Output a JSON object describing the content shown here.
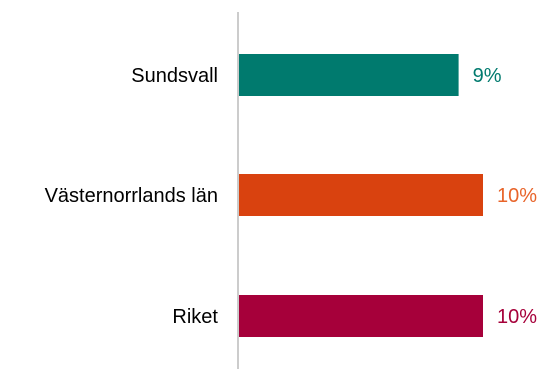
{
  "chart_data": {
    "type": "bar",
    "orientation": "horizontal",
    "title": "",
    "xlabel": "",
    "ylabel": "",
    "categories": [
      "Sundsvall",
      "Västernorrlands län",
      "Riket"
    ],
    "values": [
      9,
      10,
      10
    ],
    "value_labels": [
      "9%",
      "10%",
      "10%"
    ],
    "colors": [
      "#007a6e",
      "#d9420f",
      "#a6003a"
    ],
    "label_colors": [
      "#007a6e",
      "#e8642a",
      "#a6003a"
    ],
    "axis_color": "#cccccc",
    "xlim": [
      0,
      10.5
    ],
    "grid": false,
    "legend": "none"
  }
}
